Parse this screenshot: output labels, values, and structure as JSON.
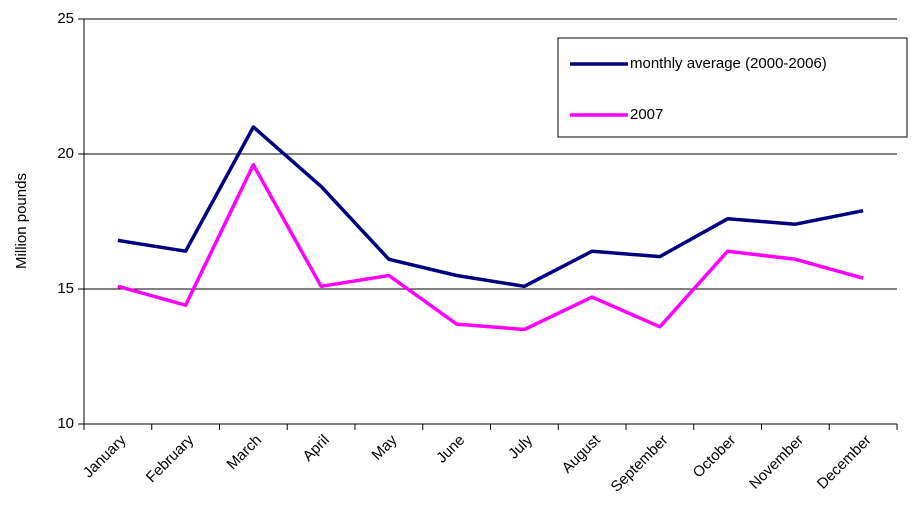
{
  "chart_data": {
    "type": "line",
    "y_label": "Million pounds",
    "categories": [
      "January",
      "February",
      "March",
      "April",
      "May",
      "June",
      "July",
      "August",
      "September",
      "October",
      "November",
      "December"
    ],
    "series": [
      {
        "name": "monthly average (2000-2006)",
        "color": "#000080",
        "values": [
          16.8,
          16.4,
          21.0,
          18.8,
          16.1,
          15.5,
          15.1,
          16.4,
          16.2,
          17.6,
          17.4,
          17.9
        ]
      },
      {
        "name": "2007",
        "color": "#ff00ff",
        "values": [
          15.1,
          14.4,
          19.6,
          15.1,
          15.5,
          13.7,
          13.5,
          14.7,
          13.6,
          16.4,
          16.1,
          15.4
        ]
      }
    ],
    "ylim": [
      10,
      25
    ],
    "yticks": [
      10,
      15,
      20,
      25
    ],
    "grid": true,
    "legend": "upper right"
  }
}
